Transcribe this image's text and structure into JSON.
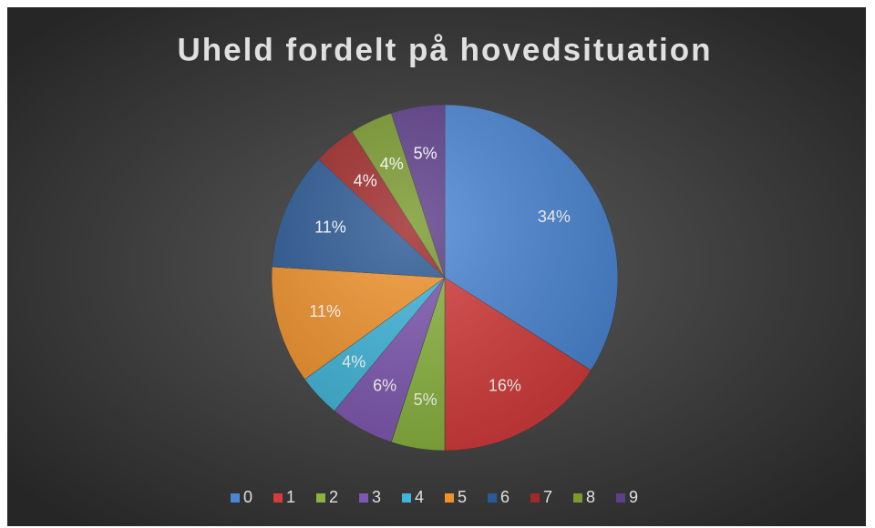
{
  "chart_data": {
    "type": "pie",
    "title": "Uheld fordelt på hovedsituation",
    "categories": [
      "0",
      "1",
      "2",
      "3",
      "4",
      "5",
      "6",
      "7",
      "8",
      "9"
    ],
    "values": [
      34,
      16,
      5,
      6,
      4,
      11,
      11,
      4,
      4,
      5
    ],
    "value_labels": [
      "34%",
      "16%",
      "5%",
      "6%",
      "4%",
      "11%",
      "11%",
      "4%",
      "4%",
      "5%"
    ],
    "colors": [
      "#4a86d4",
      "#d43b3b",
      "#8ab33f",
      "#7e57b0",
      "#3fb5d9",
      "#f0922b",
      "#2c5a96",
      "#a02a2a",
      "#7a9a2e",
      "#5f3e8a"
    ],
    "legend": "bottom"
  }
}
